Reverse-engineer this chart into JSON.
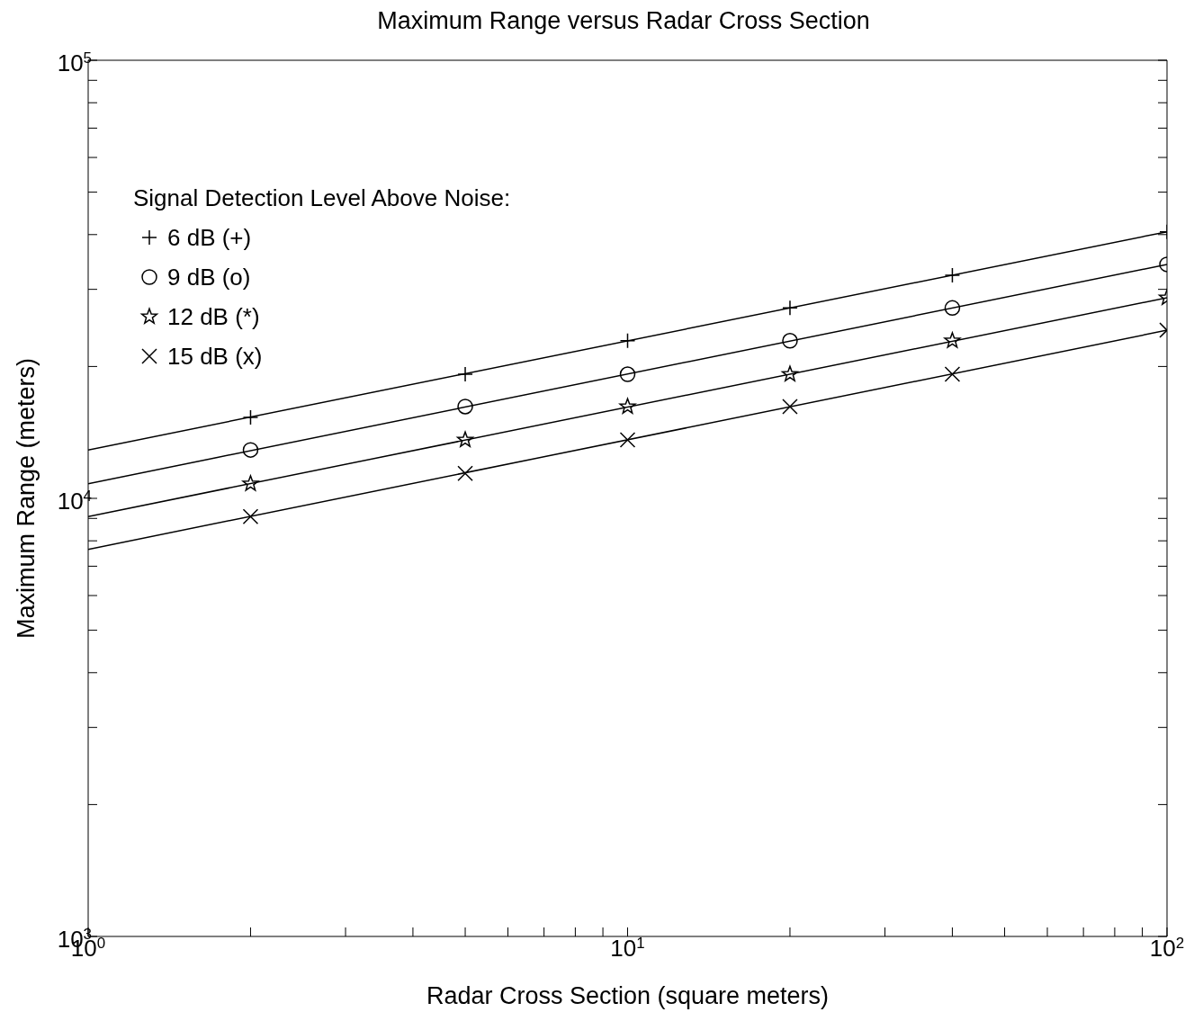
{
  "chart_data": {
    "type": "line",
    "title": "Maximum Range versus Radar Cross Section",
    "xlabel": "Radar Cross Section (square meters)",
    "ylabel": "Maximum Range (meters)",
    "legend_title": "Signal Detection Level Above Noise:",
    "legend": "top left",
    "log": "xy",
    "grid": false,
    "xlim": [
      1,
      100
    ],
    "ylim": [
      1000,
      100000
    ],
    "xticks": [
      {
        "value": 1,
        "label": "10$^{0}$"
      },
      {
        "value": 2,
        "label": null
      },
      {
        "value": 3,
        "label": null
      },
      {
        "value": 4,
        "label": null
      },
      {
        "value": 5,
        "label": null
      },
      {
        "value": 6,
        "label": null
      },
      {
        "value": 7,
        "label": null
      },
      {
        "value": 8,
        "label": null
      },
      {
        "value": 9,
        "label": null
      },
      {
        "value": 10,
        "label": "10$^{1}$"
      },
      {
        "value": 20,
        "label": null
      },
      {
        "value": 30,
        "label": null
      },
      {
        "value": 40,
        "label": null
      },
      {
        "value": 50,
        "label": null
      },
      {
        "value": 60,
        "label": null
      },
      {
        "value": 70,
        "label": null
      },
      {
        "value": 80,
        "label": null
      },
      {
        "value": 90,
        "label": null
      },
      {
        "value": 100,
        "label": "10$^{2}$"
      }
    ],
    "yticks": [
      {
        "value": 1000,
        "label": "10$^{3}$"
      },
      {
        "value": 2000,
        "label": null
      },
      {
        "value": 3000,
        "label": null
      },
      {
        "value": 4000,
        "label": null
      },
      {
        "value": 5000,
        "label": null
      },
      {
        "value": 6000,
        "label": null
      },
      {
        "value": 7000,
        "label": null
      },
      {
        "value": 8000,
        "label": null
      },
      {
        "value": 9000,
        "label": null
      },
      {
        "value": 10000,
        "label": "10$^{4}$"
      },
      {
        "value": 20000,
        "label": null
      },
      {
        "value": 30000,
        "label": null
      },
      {
        "value": 40000,
        "label": null
      },
      {
        "value": 50000,
        "label": null
      },
      {
        "value": 60000,
        "label": null
      },
      {
        "value": 70000,
        "label": null
      },
      {
        "value": 80000,
        "label": null
      },
      {
        "value": 90000,
        "label": null
      },
      {
        "value": 100000,
        "label": "10$^{5}$"
      }
    ],
    "series": [
      {
        "type": "line",
        "color": "#000000",
        "x": [
          1,
          100
        ],
        "values": [
          12900,
          40600
        ]
      },
      {
        "type": "line",
        "color": "#000000",
        "x": [
          1,
          100
        ],
        "values": [
          10800,
          34200
        ]
      },
      {
        "type": "line",
        "color": "#000000",
        "x": [
          1,
          100
        ],
        "values": [
          9090,
          28700
        ]
      },
      {
        "type": "line",
        "color": "#000000",
        "x": [
          1,
          100
        ],
        "values": [
          7650,
          24200
        ]
      },
      {
        "type": "scatter",
        "name": "6 dB (+)",
        "marker": "plus",
        "color": "#000000",
        "x": [
          2,
          5,
          10,
          20,
          40,
          100
        ],
        "values": [
          15300,
          19200,
          22900,
          27200,
          32300,
          40600
        ]
      },
      {
        "type": "scatter",
        "name": "9 dB (o)",
        "marker": "circle",
        "color": "#000000",
        "x": [
          2,
          5,
          10,
          20,
          40,
          100
        ],
        "values": [
          12900,
          16200,
          19200,
          22900,
          27200,
          34200
        ]
      },
      {
        "type": "scatter",
        "name": "12 dB (*)",
        "marker": "star",
        "color": "#000000",
        "x": [
          2,
          5,
          10,
          20,
          40,
          100
        ],
        "values": [
          10800,
          13600,
          16200,
          19200,
          22900,
          28700
        ]
      },
      {
        "type": "scatter",
        "name": "15 dB (x)",
        "marker": "cross",
        "color": "#000000",
        "x": [
          2,
          5,
          10,
          20,
          40,
          100
        ],
        "values": [
          9090,
          11400,
          13600,
          16200,
          19200,
          24200
        ]
      }
    ]
  }
}
